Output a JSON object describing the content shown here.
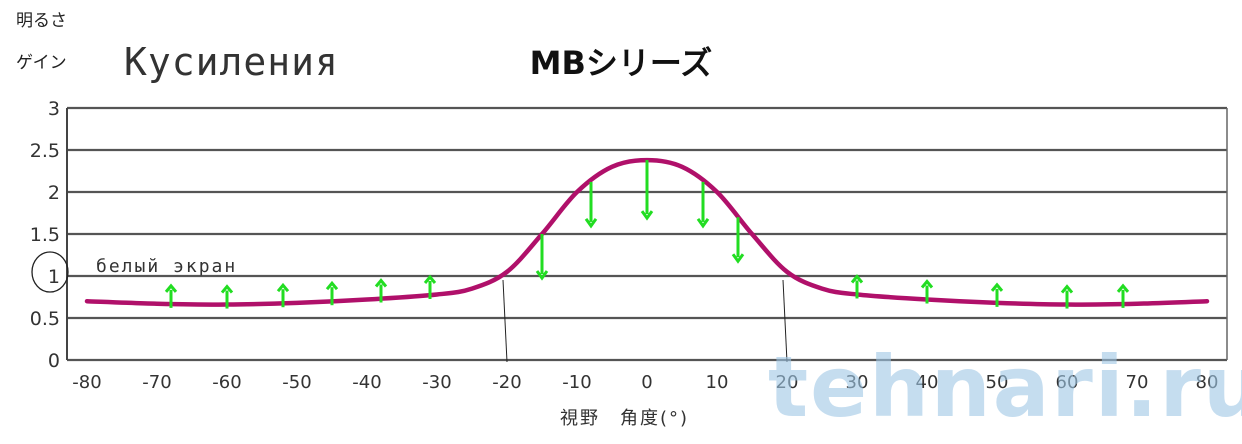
{
  "chart_data": {
    "type": "line",
    "title": "MBシリーズ",
    "ylabel_line1": "明るさ",
    "ylabel_line2": "ゲイン",
    "xlabel": "視野　角度(°)",
    "xlim": [
      -80,
      80
    ],
    "ylim": [
      0,
      3
    ],
    "xticks": [
      -80,
      -70,
      -60,
      -50,
      -40,
      -30,
      -20,
      -10,
      0,
      10,
      20,
      30,
      40,
      50,
      60,
      70,
      80
    ],
    "yticks": [
      "0",
      "0.5",
      "1",
      "1.5",
      "2",
      "2.5",
      "3"
    ],
    "grid": true,
    "series": [
      {
        "x": [
          -80,
          -70,
          -60,
          -50,
          -40,
          -30,
          -25,
          -20,
          -15,
          -10,
          -5,
          0,
          5,
          10,
          15,
          20,
          25,
          30,
          40,
          50,
          60,
          70,
          80
        ],
        "values": [
          0.7,
          0.67,
          0.66,
          0.68,
          0.72,
          0.78,
          0.85,
          1.05,
          1.5,
          2.0,
          2.3,
          2.38,
          2.3,
          2.0,
          1.5,
          1.05,
          0.85,
          0.78,
          0.72,
          0.68,
          0.66,
          0.67,
          0.7
        ],
        "color": "#b0106a"
      }
    ],
    "annotations": {
      "handwritten_title": "Кусиления",
      "handwritten_label": "белый экран",
      "arrows_up": [
        -68,
        -60,
        -52,
        -45,
        -38,
        -31,
        30,
        40,
        50,
        60,
        68
      ],
      "arrows_down": [
        -15,
        -8,
        0,
        8,
        13
      ],
      "marker_lines": [
        -20,
        20
      ],
      "arrow_color": "#22dd22"
    },
    "watermark": "tehnari.ru"
  }
}
